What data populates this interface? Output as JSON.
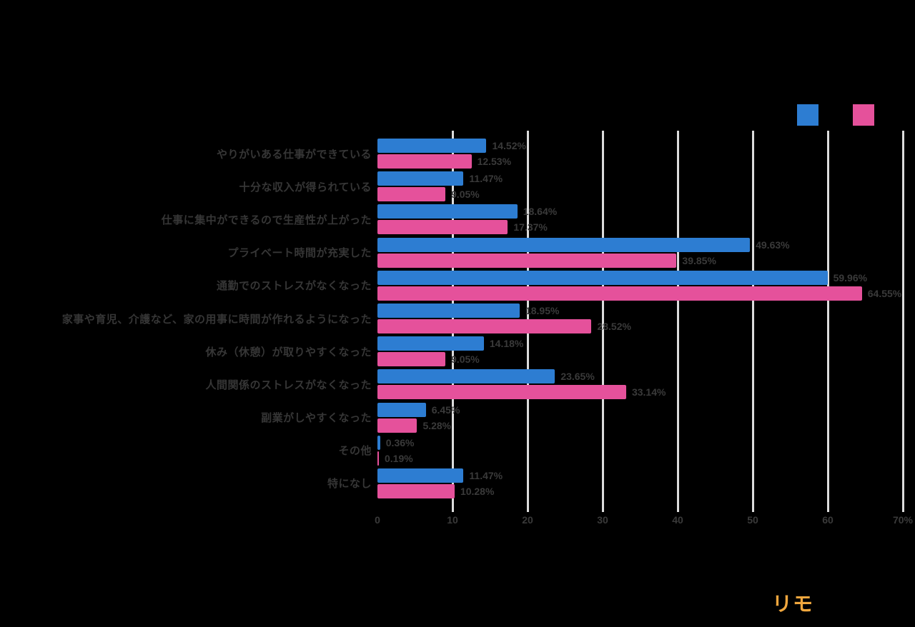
{
  "page": {
    "background": "#000000"
  },
  "colors": {
    "series_blue": "#2D7DD2",
    "series_pink": "#E5519B",
    "gridline": "#DCDCDC",
    "text": "#363636",
    "logo_orange": "#F0A73E"
  },
  "legend": {
    "items": [
      {
        "name": "series-blue",
        "color": "#2D7DD2"
      },
      {
        "name": "series-pink",
        "color": "#E5519B"
      }
    ]
  },
  "logo": {
    "text": "リモ"
  },
  "chart_data": {
    "type": "bar",
    "orientation": "horizontal",
    "categories": [
      "やりがいある仕事ができている",
      "十分な収入が得られている",
      "仕事に集中ができるので生産性が上がった",
      "プライベート時間が充実した",
      "通勤でのストレスがなくなった",
      "家事や育児、介護など、家の用事に時間が作れるようになった",
      "休み（休憩）が取りやすくなった",
      "人間関係のストレスがなくなった",
      "副業がしやすくなった",
      "その他",
      "特になし"
    ],
    "series": [
      {
        "name": "series-blue",
        "color": "#2D7DD2",
        "values": [
          14.52,
          11.47,
          18.64,
          49.63,
          59.96,
          18.95,
          14.18,
          23.65,
          6.45,
          0.36,
          11.47
        ],
        "labels": [
          "14.52%",
          "11.47%",
          "18.64%",
          "49.63%",
          "59.96%",
          "18.95%",
          "14.18%",
          "23.65%",
          "6.45%",
          "0.36%",
          "11.47%"
        ]
      },
      {
        "name": "series-pink",
        "color": "#E5519B",
        "values": [
          12.53,
          9.05,
          17.37,
          39.85,
          64.55,
          28.52,
          9.05,
          33.14,
          5.28,
          0.19,
          10.28
        ],
        "labels": [
          "12.53%",
          "9.05%",
          "17.37%",
          "39.85%",
          "64.55%",
          "28.52%",
          "9.05%",
          "33.14%",
          "5.28%",
          "0.19%",
          "10.28%"
        ]
      }
    ],
    "xlim": [
      0,
      70
    ],
    "x_ticks": [
      "0",
      "10",
      "20",
      "30",
      "40",
      "50",
      "60",
      "70%"
    ],
    "grid": "vertical",
    "legend_position": "top-right"
  }
}
